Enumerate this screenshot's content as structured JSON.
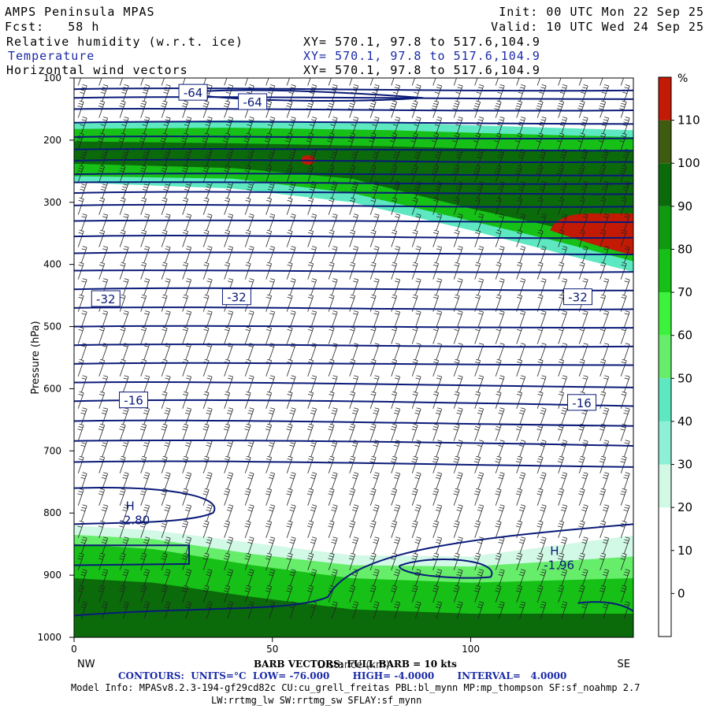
{
  "header": {
    "model": "AMPS Peninsula MPAS",
    "fcst": "Fcst:   58 h",
    "init": "Init: 00 UTC Mon 22 Sep 25",
    "valid": "Valid: 10 UTC Wed 24 Sep 25",
    "fields": [
      {
        "label": "Relative humidity (w.r.t. ice)",
        "xy": "XY= 570.1, 97.8 to 517.6,104.9"
      },
      {
        "label": "Temperature",
        "xy": "XY= 570.1, 97.8 to 517.6,104.9"
      },
      {
        "label": "Horizontal wind vectors",
        "xy": "XY= 570.1, 97.8 to 517.6,104.9"
      }
    ]
  },
  "chart_data": {
    "type": "heatmap",
    "ylabel": "Pressure (hPa)",
    "xlabel": "Distance (km)",
    "x_ticks": [
      0,
      50,
      100
    ],
    "y_ticks": [
      100,
      200,
      300,
      400,
      500,
      600,
      700,
      800,
      900,
      1000
    ],
    "xlim": [
      0,
      141
    ],
    "ylim": [
      1000,
      100
    ],
    "left_end": "NW",
    "right_end": "SE",
    "colorbar": {
      "unit": "%",
      "ticks": [
        0,
        10,
        20,
        30,
        40,
        50,
        60,
        70,
        80,
        90,
        100,
        110
      ],
      "colors": [
        "#ffffff",
        "#ffffff",
        "#ffffff",
        "#d2f8e6",
        "#8ff0d8",
        "#5de8c2",
        "#66ed6a",
        "#3cf23c",
        "#16c016",
        "#0f9a0f",
        "#0b6b0b",
        "#3f5b10",
        "#c21a04"
      ]
    },
    "rh_bands": [
      {
        "value": 50,
        "top": [
          [
            0,
            172
          ],
          [
            40,
            168
          ],
          [
            80,
            172
          ],
          [
            110,
            178
          ],
          [
            141,
            184
          ]
        ],
        "bottom": [
          [
            0,
            268
          ],
          [
            40,
            278
          ],
          [
            70,
            300
          ],
          [
            100,
            345
          ],
          [
            120,
            378
          ],
          [
            141,
            412
          ]
        ]
      },
      {
        "value": 85,
        "top": [
          [
            0,
            182
          ],
          [
            40,
            180
          ],
          [
            80,
            184
          ],
          [
            110,
            190
          ],
          [
            141,
            195
          ]
        ],
        "bottom": [
          [
            0,
            258
          ],
          [
            40,
            262
          ],
          [
            70,
            285
          ],
          [
            100,
            330
          ],
          [
            120,
            360
          ],
          [
            141,
            395
          ]
        ]
      },
      {
        "value": 100,
        "top": [
          [
            0,
            202
          ],
          [
            40,
            205
          ],
          [
            80,
            210
          ],
          [
            110,
            215
          ],
          [
            141,
            218
          ]
        ],
        "bottom": [
          [
            0,
            238
          ],
          [
            40,
            245
          ],
          [
            70,
            262
          ],
          [
            100,
            310
          ],
          [
            120,
            338
          ],
          [
            141,
            375
          ]
        ]
      }
    ],
    "rh_low_bands": [
      {
        "value": 35,
        "top": [
          [
            0,
            820
          ],
          [
            20,
            828
          ],
          [
            45,
            848
          ],
          [
            70,
            868
          ],
          [
            100,
            870
          ],
          [
            141,
            836
          ]
        ]
      },
      {
        "value": 60,
        "top": [
          [
            0,
            835
          ],
          [
            20,
            842
          ],
          [
            45,
            866
          ],
          [
            70,
            884
          ],
          [
            100,
            886
          ],
          [
            141,
            870
          ]
        ]
      },
      {
        "value": 85,
        "top": [
          [
            0,
            850
          ],
          [
            20,
            858
          ],
          [
            45,
            884
          ],
          [
            70,
            905
          ],
          [
            100,
            912
          ],
          [
            141,
            905
          ]
        ]
      },
      {
        "value": 100,
        "top": [
          [
            0,
            905
          ],
          [
            20,
            912
          ],
          [
            45,
            935
          ],
          [
            70,
            955
          ],
          [
            100,
            962
          ],
          [
            141,
            962
          ]
        ]
      }
    ],
    "temperature_contours": [
      {
        "label": "-64",
        "label_at": [
          30,
          123
        ]
      },
      {
        "label": "-64",
        "label_at": [
          45,
          138
        ]
      },
      {
        "label": "-32",
        "label_at": [
          8,
          455
        ]
      },
      {
        "label": "-32",
        "label_at": [
          41,
          452
        ]
      },
      {
        "label": "-32",
        "label_at": [
          127,
          452
        ]
      },
      {
        "label": "-16",
        "label_at": [
          15,
          618
        ]
      },
      {
        "label": "-16",
        "label_at": [
          128,
          622
        ]
      }
    ],
    "extrema": [
      {
        "type": "H",
        "value": "-2.80",
        "at": [
          13,
          808
        ]
      },
      {
        "type": "H",
        "value": "-1.96",
        "at": [
          120,
          880
        ]
      }
    ]
  },
  "footer": {
    "barb": "BARB VECTORS: FULL BARB = 10 kts",
    "contours": "CONTOURS:  UNITS=°C  LOW= -76.000       HIGH= -4.0000       INTERVAL=   4.0000",
    "model_info": "Model Info: MPASv8.2.3-194-gf29cd82c CU:cu_grell_freitas PBL:bl_mynn MP:mp_thompson SF:sf_noahmp 2.7",
    "model_info2": "LW:rrtmg_lw SW:rrtmg_sw SFLAY:sf_mynn"
  }
}
